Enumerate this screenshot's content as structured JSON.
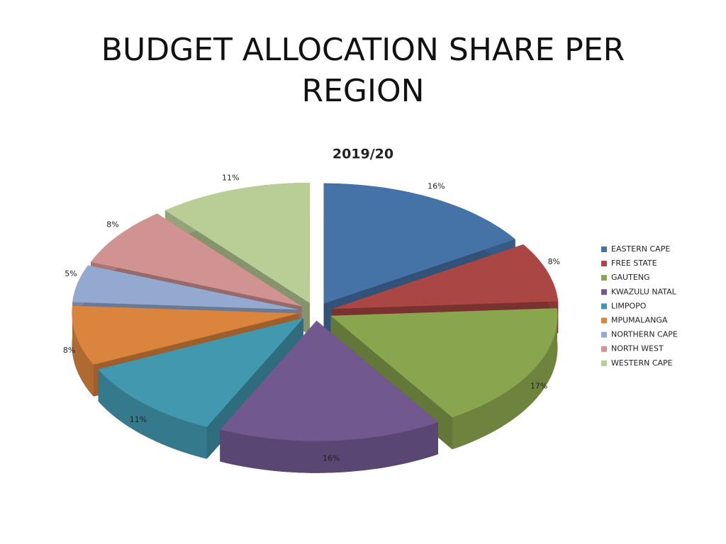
{
  "slide_title": "BUDGET ALLOCATION SHARE PER REGION",
  "chart_data": {
    "type": "pie",
    "title": "2019/20",
    "categories": [
      "EASTERN CAPE",
      "FREE STATE",
      "GAUTENG",
      "KWAZULU NATAL",
      "LIMPOPO",
      "MPUMALANGA",
      "NORTHERN CAPE",
      "NORTH WEST",
      "WESTERN CAPE"
    ],
    "values": [
      16,
      8,
      17,
      16,
      11,
      8,
      5,
      8,
      11
    ],
    "value_labels": [
      "16%",
      "8%",
      "17%",
      "16%",
      "11%",
      "8%",
      "5%",
      "8%",
      "11%"
    ],
    "colors": [
      "#4572a7",
      "#aa4643",
      "#89a54e",
      "#71588f",
      "#4198af",
      "#db843d",
      "#93a9cf",
      "#d19392",
      "#b9cd96"
    ],
    "legend": "right"
  }
}
